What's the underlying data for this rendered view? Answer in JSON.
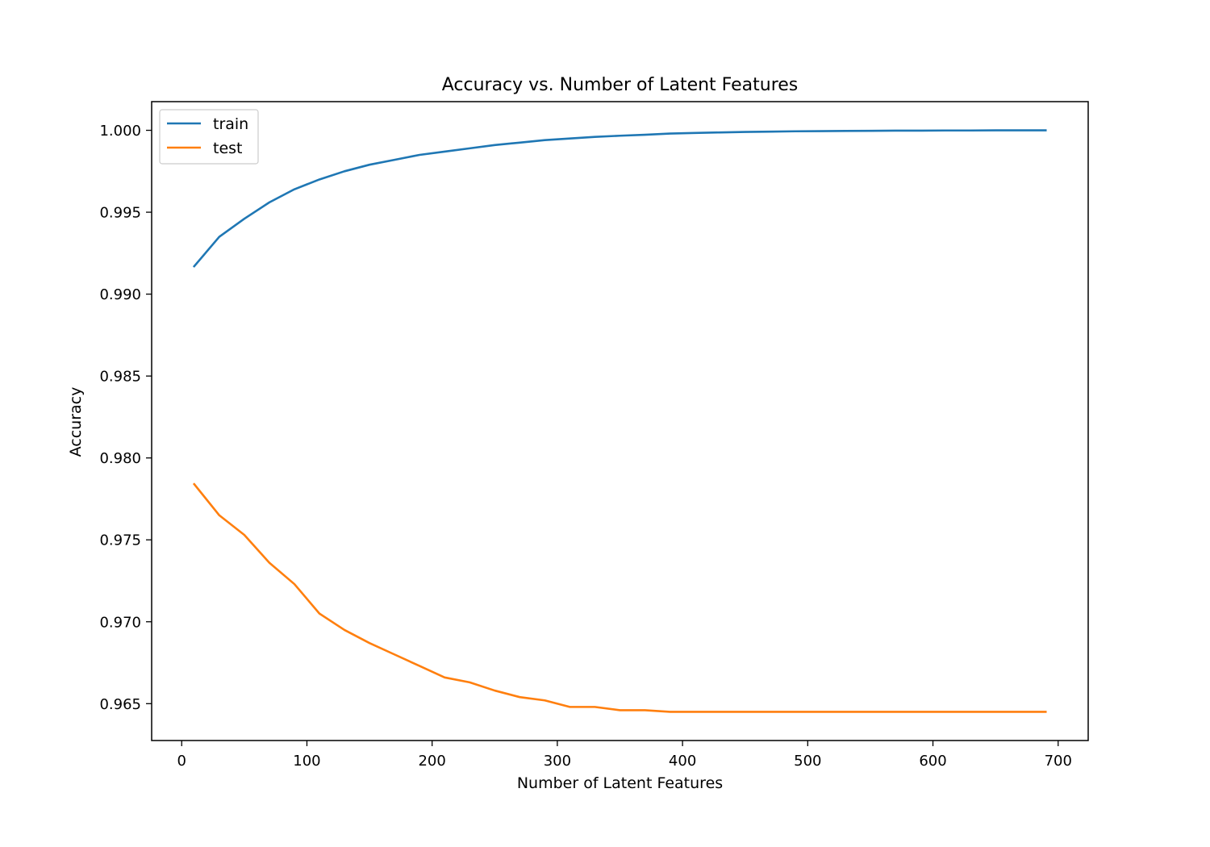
{
  "chart_data": {
    "type": "line",
    "title": "Accuracy vs. Number of Latent Features",
    "xlabel": "Number of Latent Features",
    "ylabel": "Accuracy",
    "xlim": [
      -24,
      724
    ],
    "ylim": [
      0.96275,
      1.00175
    ],
    "x_ticks": [
      0,
      100,
      200,
      300,
      400,
      500,
      600,
      700
    ],
    "x_tick_labels": [
      "0",
      "100",
      "200",
      "300",
      "400",
      "500",
      "600",
      "700"
    ],
    "y_ticks": [
      0.965,
      0.97,
      0.975,
      0.98,
      0.985,
      0.99,
      0.995,
      1.0
    ],
    "y_tick_labels": [
      "0.965",
      "0.970",
      "0.975",
      "0.980",
      "0.985",
      "0.990",
      "0.995",
      "1.000"
    ],
    "grid": false,
    "legend_position": "top-left",
    "x": [
      10,
      30,
      50,
      70,
      90,
      110,
      130,
      150,
      170,
      190,
      210,
      230,
      250,
      270,
      290,
      310,
      330,
      350,
      370,
      390,
      410,
      430,
      450,
      470,
      490,
      510,
      530,
      550,
      570,
      590,
      610,
      630,
      650,
      670,
      690
    ],
    "series": [
      {
        "name": "train",
        "color": "#1f77b4",
        "values": [
          0.9917,
          0.9935,
          0.9946,
          0.9956,
          0.9964,
          0.997,
          0.9975,
          0.9979,
          0.9982,
          0.9985,
          0.9987,
          0.9989,
          0.9991,
          0.99925,
          0.9994,
          0.9995,
          0.9996,
          0.99967,
          0.99973,
          0.9998,
          0.99984,
          0.99987,
          0.9999,
          0.99992,
          0.99994,
          0.99995,
          0.99996,
          0.99997,
          0.99998,
          0.99998,
          0.99999,
          0.99999,
          1.0,
          1.0,
          1.0
        ]
      },
      {
        "name": "test",
        "color": "#ff7f0e",
        "values": [
          0.9784,
          0.9765,
          0.9753,
          0.9736,
          0.9723,
          0.9705,
          0.9695,
          0.9687,
          0.968,
          0.9673,
          0.9666,
          0.9663,
          0.9658,
          0.9654,
          0.9652,
          0.9648,
          0.9648,
          0.9646,
          0.9646,
          0.9645,
          0.9645,
          0.9645,
          0.9645,
          0.9645,
          0.9645,
          0.9645,
          0.9645,
          0.9645,
          0.9645,
          0.9645,
          0.9645,
          0.9645,
          0.9645,
          0.9645,
          0.9645
        ]
      }
    ]
  }
}
